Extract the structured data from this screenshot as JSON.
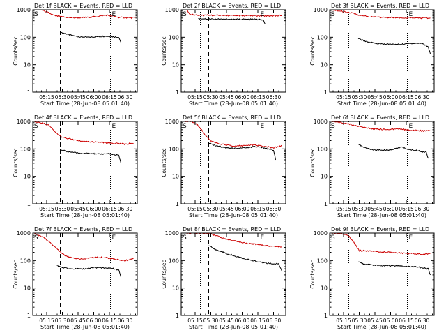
{
  "figure": {
    "x_title": "Start Time (28-Jun-08 05:01:40)",
    "y_title": "Counts/sec",
    "x_ticks": [
      "05:15",
      "05:30",
      "05:45",
      "06:00",
      "06:15",
      "06:30"
    ],
    "y_ticks": [
      "1",
      "10",
      "100",
      "1000"
    ],
    "corner_labels": [
      "S",
      "E"
    ],
    "colors": {
      "events": "#000000",
      "lld": "#cc0000"
    }
  },
  "chart_data": [
    {
      "type": "line",
      "title": "Det 1f BLACK = Events, RED = LLD",
      "x": [
        "05:06",
        "05:12",
        "05:18",
        "05:24",
        "05:27",
        "05:30",
        "05:36",
        "05:45",
        "05:54",
        "06:03",
        "06:12",
        "06:18",
        "06:24",
        "06:30",
        "06:36",
        "06:40"
      ],
      "xlim": [
        "05:01:40",
        "06:41:40"
      ],
      "ylim": [
        1,
        1000
      ],
      "y_scale": "log",
      "markers": {
        "dotted": [
          "05:20",
          "06:16"
        ],
        "dashed": [
          "05:28"
        ]
      },
      "series": [
        {
          "name": "Events",
          "x": [
            "05:29",
            "05:36",
            "05:45",
            "05:54",
            "06:03",
            "06:12",
            "06:18",
            "06:24",
            "06:26"
          ],
          "values": [
            150,
            125,
            105,
            100,
            105,
            110,
            105,
            100,
            65
          ]
        },
        {
          "name": "LLD",
          "x": [
            "05:03",
            "05:10",
            "05:16",
            "05:22",
            "05:28",
            "05:36",
            "05:45",
            "05:54",
            "06:03",
            "06:12",
            "06:18",
            "06:24",
            "06:30",
            "06:36",
            "06:40"
          ],
          "values": [
            1000,
            1000,
            800,
            620,
            560,
            520,
            510,
            530,
            570,
            640,
            590,
            530,
            520,
            510,
            520
          ]
        }
      ]
    },
    {
      "type": "line",
      "title": "Det 2f BLACK = Events, RED = LLD",
      "xlim": [
        "05:01:40",
        "06:41:40"
      ],
      "ylim": [
        1,
        1000
      ],
      "y_scale": "log",
      "markers": {
        "dotted": [
          "05:20",
          "06:16"
        ],
        "dashed": [
          "05:28"
        ]
      },
      "series": [
        {
          "name": "Events",
          "x": [
            "05:18",
            "05:25",
            "05:30",
            "05:40",
            "05:50",
            "06:00",
            "06:10",
            "06:16",
            "06:20",
            "06:22"
          ],
          "values": [
            480,
            470,
            460,
            455,
            450,
            450,
            450,
            440,
            430,
            300
          ]
        },
        {
          "name": "LLD",
          "x": [
            "05:03",
            "05:07",
            "05:10",
            "05:14",
            "05:20",
            "05:30",
            "05:40",
            "05:50",
            "06:00",
            "06:10",
            "06:20",
            "06:30",
            "06:38"
          ],
          "values": [
            1000,
            1000,
            700,
            650,
            640,
            630,
            620,
            620,
            610,
            610,
            600,
            610,
            620
          ]
        }
      ]
    },
    {
      "type": "line",
      "title": "Det 3f BLACK = Events, RED = LLD",
      "xlim": [
        "05:01:40",
        "06:41:40"
      ],
      "ylim": [
        1,
        1000
      ],
      "y_scale": "log",
      "markers": {
        "dotted": [
          "05:20",
          "06:16"
        ],
        "dashed": [
          "05:28"
        ]
      },
      "series": [
        {
          "name": "Events",
          "x": [
            "05:29",
            "05:34",
            "05:40",
            "05:50",
            "06:00",
            "06:10",
            "06:20",
            "06:30",
            "06:36",
            "06:38"
          ],
          "values": [
            90,
            75,
            65,
            58,
            55,
            55,
            60,
            60,
            45,
            25
          ]
        },
        {
          "name": "LLD",
          "x": [
            "05:03",
            "05:12",
            "05:20",
            "05:26",
            "05:30",
            "05:40",
            "05:50",
            "06:00",
            "06:10",
            "06:20",
            "06:30",
            "06:38"
          ],
          "values": [
            1000,
            900,
            800,
            720,
            620,
            560,
            530,
            520,
            520,
            510,
            500,
            500
          ]
        }
      ]
    },
    {
      "type": "line",
      "title": "Det 4f BLACK = Events, RED = LLD",
      "xlim": [
        "05:01:40",
        "06:41:40"
      ],
      "ylim": [
        1,
        1000
      ],
      "y_scale": "log",
      "markers": {
        "dotted": [
          "05:20",
          "06:16"
        ],
        "dashed": [
          "05:28"
        ]
      },
      "series": [
        {
          "name": "Events",
          "x": [
            "05:29",
            "05:35",
            "05:45",
            "05:55",
            "06:05",
            "06:15",
            "06:20",
            "06:24",
            "06:26"
          ],
          "values": [
            90,
            80,
            70,
            68,
            65,
            65,
            62,
            58,
            30
          ]
        },
        {
          "name": "LLD",
          "x": [
            "05:03",
            "05:12",
            "05:18",
            "05:24",
            "05:30",
            "05:40",
            "05:50",
            "06:00",
            "06:10",
            "06:20",
            "06:30",
            "06:38"
          ],
          "values": [
            1000,
            850,
            700,
            380,
            260,
            220,
            190,
            180,
            170,
            160,
            150,
            160
          ]
        }
      ]
    },
    {
      "type": "line",
      "title": "Det 5f BLACK = Events, RED = LLD",
      "xlim": [
        "05:01:40",
        "06:41:40"
      ],
      "ylim": [
        1,
        1000
      ],
      "y_scale": "log",
      "markers": {
        "dotted": [
          "05:20",
          "06:16"
        ],
        "dashed": [
          "05:28"
        ]
      },
      "series": [
        {
          "name": "Events",
          "x": [
            "05:28",
            "05:35",
            "05:45",
            "05:55",
            "06:05",
            "06:12",
            "06:20",
            "06:26",
            "06:30",
            "06:32"
          ],
          "values": [
            160,
            130,
            110,
            105,
            110,
            120,
            110,
            100,
            90,
            40
          ]
        },
        {
          "name": "LLD",
          "x": [
            "05:03",
            "05:12",
            "05:18",
            "05:24",
            "05:30",
            "05:40",
            "05:50",
            "06:00",
            "06:10",
            "06:20",
            "06:30",
            "06:38"
          ],
          "values": [
            1000,
            1000,
            700,
            350,
            190,
            150,
            130,
            130,
            140,
            125,
            110,
            130
          ]
        }
      ]
    },
    {
      "type": "line",
      "title": "Det 6f BLACK = Events, RED = LLD",
      "xlim": [
        "05:01:40",
        "06:41:40"
      ],
      "ylim": [
        1,
        1000
      ],
      "y_scale": "log",
      "markers": {
        "dotted": [
          "05:20",
          "06:16"
        ],
        "dashed": [
          "05:28"
        ]
      },
      "series": [
        {
          "name": "Events",
          "x": [
            "05:29",
            "05:34",
            "05:42",
            "05:50",
            "05:58",
            "06:04",
            "06:10",
            "06:18",
            "06:26",
            "06:34",
            "06:36"
          ],
          "values": [
            150,
            115,
            95,
            90,
            90,
            100,
            115,
            95,
            85,
            75,
            45
          ]
        },
        {
          "name": "LLD",
          "x": [
            "05:03",
            "05:12",
            "05:20",
            "05:26",
            "05:30",
            "05:40",
            "05:50",
            "06:00",
            "06:06",
            "06:10",
            "06:20",
            "06:30",
            "06:38"
          ],
          "values": [
            1000,
            900,
            800,
            700,
            650,
            560,
            520,
            500,
            560,
            520,
            480,
            460,
            450
          ]
        }
      ]
    },
    {
      "type": "line",
      "title": "Det 7f BLACK = Events, RED = LLD",
      "xlim": [
        "05:01:40",
        "06:41:40"
      ],
      "ylim": [
        1,
        1000
      ],
      "y_scale": "log",
      "markers": {
        "dotted": [
          "05:20",
          "06:16"
        ],
        "dashed": [
          "05:28"
        ]
      },
      "series": [
        {
          "name": "Events",
          "x": [
            "05:24",
            "05:30",
            "05:40",
            "05:50",
            "06:00",
            "06:10",
            "06:20",
            "06:24",
            "06:26"
          ],
          "values": [
            70,
            55,
            50,
            50,
            55,
            55,
            50,
            45,
            25
          ]
        },
        {
          "name": "LLD",
          "x": [
            "05:03",
            "05:12",
            "05:18",
            "05:24",
            "05:30",
            "05:40",
            "05:50",
            "06:00",
            "06:10",
            "06:20",
            "06:30",
            "06:38"
          ],
          "values": [
            1000,
            700,
            450,
            300,
            170,
            120,
            115,
            130,
            130,
            110,
            100,
            120
          ]
        }
      ]
    },
    {
      "type": "line",
      "title": "Det 8f BLACK = Events, RED = LLD",
      "xlim": [
        "05:01:40",
        "06:41:40"
      ],
      "ylim": [
        1,
        1000
      ],
      "y_scale": "log",
      "markers": {
        "dotted": [
          "05:20",
          "06:16"
        ],
        "dashed": [
          "05:28"
        ]
      },
      "series": [
        {
          "name": "Events",
          "x": [
            "05:28",
            "05:35",
            "05:45",
            "05:55",
            "06:05",
            "06:15",
            "06:25",
            "06:35",
            "06:38"
          ],
          "values": [
            350,
            250,
            180,
            140,
            110,
            90,
            80,
            75,
            40
          ]
        },
        {
          "name": "LLD",
          "x": [
            "05:03",
            "05:12",
            "05:20",
            "05:28",
            "05:35",
            "05:45",
            "05:55",
            "06:05",
            "06:15",
            "06:25",
            "06:38"
          ],
          "values": [
            1000,
            1000,
            1000,
            1000,
            800,
            600,
            500,
            420,
            380,
            340,
            320
          ]
        }
      ]
    },
    {
      "type": "line",
      "title": "Det 9f BLACK = Events, RED = LLD",
      "xlim": [
        "05:01:40",
        "06:41:40"
      ],
      "ylim": [
        1,
        1000
      ],
      "y_scale": "log",
      "markers": {
        "dotted": [
          "05:20",
          "06:16"
        ],
        "dashed": [
          "05:28"
        ]
      },
      "series": [
        {
          "name": "Events",
          "x": [
            "05:29",
            "05:34",
            "05:42",
            "05:52",
            "06:02",
            "06:12",
            "06:22",
            "06:30",
            "06:36",
            "06:38"
          ],
          "values": [
            90,
            75,
            70,
            65,
            65,
            62,
            60,
            55,
            50,
            30
          ]
        },
        {
          "name": "LLD",
          "x": [
            "05:03",
            "05:12",
            "05:20",
            "05:25",
            "05:30",
            "05:40",
            "05:50",
            "06:00",
            "06:10",
            "06:20",
            "06:30",
            "06:38"
          ],
          "values": [
            1000,
            1000,
            800,
            450,
            230,
            220,
            210,
            200,
            190,
            180,
            170,
            180
          ]
        }
      ]
    }
  ]
}
